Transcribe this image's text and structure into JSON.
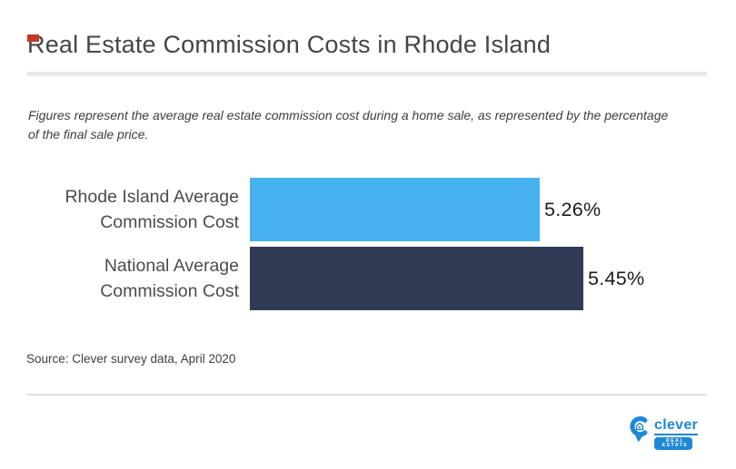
{
  "header": {
    "title": "Real Estate Commission Costs in Rhode Island",
    "subtitle_lines": [
      "Figures represent the average real estate commission cost during a home sale, as represented by the percentage",
      "of the final sale price."
    ]
  },
  "chart_data": {
    "type": "bar",
    "orientation": "horizontal",
    "title": "Real Estate Commission Costs in Rhode Island",
    "categories": [
      "Rhode Island Average Commission Cost",
      "National Average Commission Cost"
    ],
    "values": [
      5.26,
      5.45
    ],
    "value_labels": [
      "5.26%",
      "5.45%"
    ],
    "bar_colors": [
      "#45b1ef",
      "#2f3b55"
    ],
    "xlim": [
      4.0,
      6.0
    ],
    "xlabel": "",
    "ylabel": "",
    "grid": false,
    "legend": false
  },
  "footer": {
    "source": "Source: Clever survey data, April 2020",
    "logo": {
      "wordmark": "clever",
      "tagline": "REAL ESTATE",
      "brand_color": "#1f88d6"
    }
  },
  "accent_colors": {
    "red_marker": "#c0392b"
  }
}
